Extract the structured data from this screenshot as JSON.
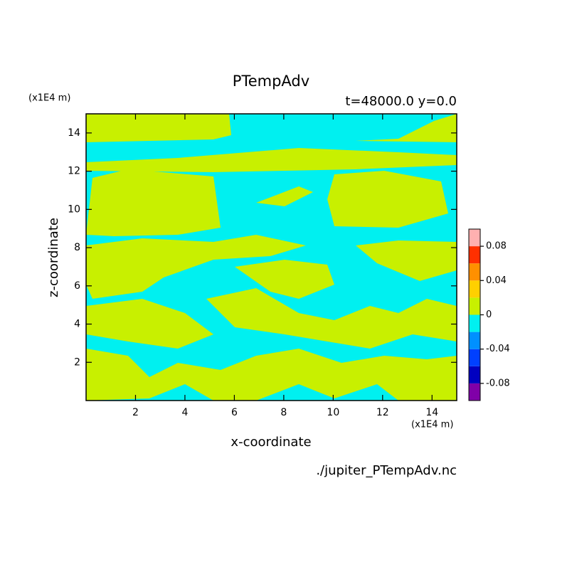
{
  "chart_data": {
    "type": "contour",
    "title": "PTempAdv",
    "subtitle": "t=48000.0 y=0.0",
    "x_label": "x-coordinate",
    "y_label": "z-coordinate",
    "x_unit": "(x1E4 m)",
    "y_unit": "(x1E4 m)",
    "source": "./jupiter_PTempAdv.nc",
    "xlim": [
      0,
      15
    ],
    "ylim": [
      0,
      15
    ],
    "xticks": [
      2,
      4,
      6,
      8,
      10,
      12,
      14
    ],
    "yticks": [
      2,
      4,
      6,
      8,
      10,
      12,
      14
    ],
    "colorbar": {
      "levels": [
        -0.1,
        -0.08,
        -0.06,
        -0.04,
        -0.02,
        0,
        0.02,
        0.04,
        0.06,
        0.08,
        0.1
      ],
      "colors": [
        "#8000a8",
        "#0000c0",
        "#0040ff",
        "#0090ff",
        "#00f0f0",
        "#c8f000",
        "#ffd000",
        "#ff9000",
        "#ff3000",
        "#ffb0b0"
      ],
      "ticks": [
        -0.08,
        -0.04,
        0,
        0.04,
        0.08
      ]
    }
  }
}
